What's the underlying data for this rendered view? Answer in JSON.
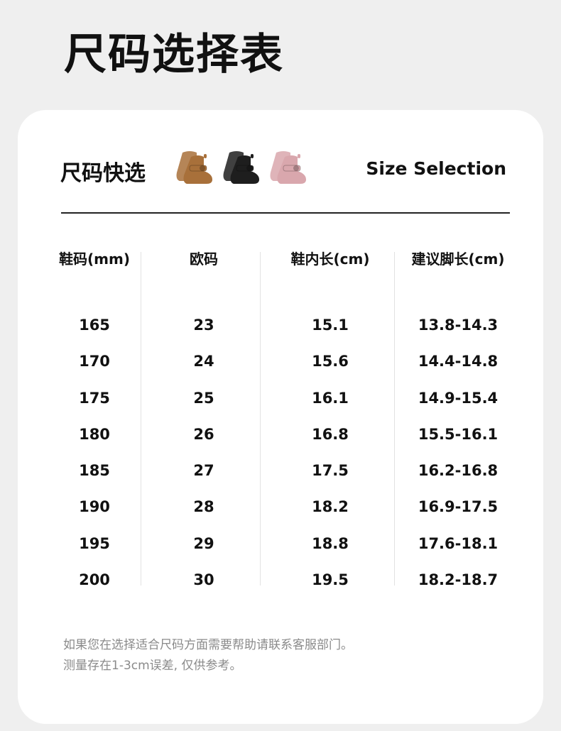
{
  "page_title": "尺码选择表",
  "card": {
    "subtitle": "尺码快选",
    "subtitle_en": "Size Selection",
    "boots": [
      {
        "name": "brown-boot-image",
        "color": "#a8703a"
      },
      {
        "name": "black-boot-image",
        "color": "#1e1e1e"
      },
      {
        "name": "pink-boot-image",
        "color": "#d9a7ad"
      }
    ]
  },
  "table": {
    "columns": [
      "鞋码(mm)",
      "欧码",
      "鞋内长(cm)",
      "建议脚长(cm)"
    ],
    "rows": [
      [
        "165",
        "23",
        "15.1",
        "13.8-14.3"
      ],
      [
        "170",
        "24",
        "15.6",
        "14.4-14.8"
      ],
      [
        "175",
        "25",
        "16.1",
        "14.9-15.4"
      ],
      [
        "180",
        "26",
        "16.8",
        "15.5-16.1"
      ],
      [
        "185",
        "27",
        "17.5",
        "16.2-16.8"
      ],
      [
        "190",
        "28",
        "18.2",
        "16.9-17.5"
      ],
      [
        "195",
        "29",
        "18.8",
        "17.6-18.1"
      ],
      [
        "200",
        "30",
        "19.5",
        "18.2-18.7"
      ]
    ]
  },
  "notes": [
    "如果您在选择适合尺码方面需要帮助请联系客服部门。",
    "测量存在1-3cm误差, 仅供参考。"
  ]
}
